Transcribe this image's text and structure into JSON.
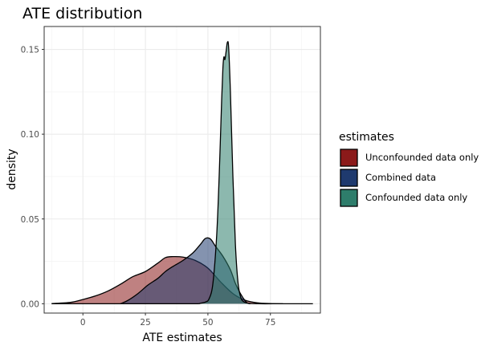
{
  "chart_data": {
    "type": "area",
    "title": "ATE distribution",
    "xlabel": "ATE estimates",
    "ylabel": "density",
    "xlim": [
      -15.5,
      95
    ],
    "ylim": [
      -0.0055,
      0.1635
    ],
    "xticks": [
      0,
      25,
      50,
      75
    ],
    "yticks": [
      0.0,
      0.05,
      0.1,
      0.15
    ],
    "xtick_labels": [
      "0",
      "25",
      "50",
      "75"
    ],
    "ytick_labels": [
      "0.00",
      "0.05",
      "0.10",
      "0.15"
    ],
    "grid": true,
    "legend_title": "estimates",
    "legend_position": "right",
    "series": [
      {
        "name": "Unconfounded data only",
        "color": "#8B1A1A",
        "fill_opacity": 0.55,
        "points": [
          [
            -12.5,
            0.0001
          ],
          [
            -5,
            0.0008
          ],
          [
            0,
            0.0025
          ],
          [
            5,
            0.0046
          ],
          [
            10,
            0.0075
          ],
          [
            15,
            0.0115
          ],
          [
            20,
            0.016
          ],
          [
            25,
            0.019
          ],
          [
            30,
            0.024
          ],
          [
            33,
            0.0272
          ],
          [
            36,
            0.0278
          ],
          [
            40,
            0.0275
          ],
          [
            45,
            0.0255
          ],
          [
            50,
            0.021
          ],
          [
            55,
            0.013
          ],
          [
            60,
            0.006
          ],
          [
            65,
            0.002
          ],
          [
            70,
            0.0005
          ],
          [
            75,
            0.0001
          ],
          [
            80,
            0.0
          ]
        ]
      },
      {
        "name": "Combined data",
        "color": "#1F3A6E",
        "fill_opacity": 0.55,
        "points": [
          [
            15,
            0.0
          ],
          [
            18,
            0.002
          ],
          [
            22,
            0.006
          ],
          [
            26,
            0.011
          ],
          [
            30,
            0.015
          ],
          [
            33,
            0.019
          ],
          [
            36,
            0.022
          ],
          [
            40,
            0.0255
          ],
          [
            44,
            0.03
          ],
          [
            47,
            0.035
          ],
          [
            49,
            0.0385
          ],
          [
            51,
            0.0382
          ],
          [
            53,
            0.034
          ],
          [
            56,
            0.028
          ],
          [
            59,
            0.02
          ],
          [
            61,
            0.012
          ],
          [
            63,
            0.006
          ],
          [
            65,
            0.0015
          ],
          [
            66,
            0.0003
          ],
          [
            67,
            0.0
          ]
        ]
      },
      {
        "name": "Confounded data only",
        "color": "#2E7D6B",
        "fill_opacity": 0.55,
        "points": [
          [
            -12.5,
            0.0
          ],
          [
            30,
            0.0
          ],
          [
            45,
            0.0
          ],
          [
            47,
            0.0003
          ],
          [
            49,
            0.001
          ],
          [
            50.5,
            0.003
          ],
          [
            52,
            0.012
          ],
          [
            53.5,
            0.04
          ],
          [
            54.5,
            0.075
          ],
          [
            55.5,
            0.12
          ],
          [
            56,
            0.139
          ],
          [
            56.4,
            0.1455
          ],
          [
            56.8,
            0.144
          ],
          [
            57.3,
            0.149
          ],
          [
            57.8,
            0.1542
          ],
          [
            58.3,
            0.151
          ],
          [
            59,
            0.125
          ],
          [
            60,
            0.075
          ],
          [
            61,
            0.035
          ],
          [
            62,
            0.013
          ],
          [
            63,
            0.0045
          ],
          [
            64,
            0.0015
          ],
          [
            66,
            0.0003
          ],
          [
            70,
            0.0
          ],
          [
            80,
            0.0
          ],
          [
            92,
            0.0
          ]
        ]
      }
    ]
  }
}
